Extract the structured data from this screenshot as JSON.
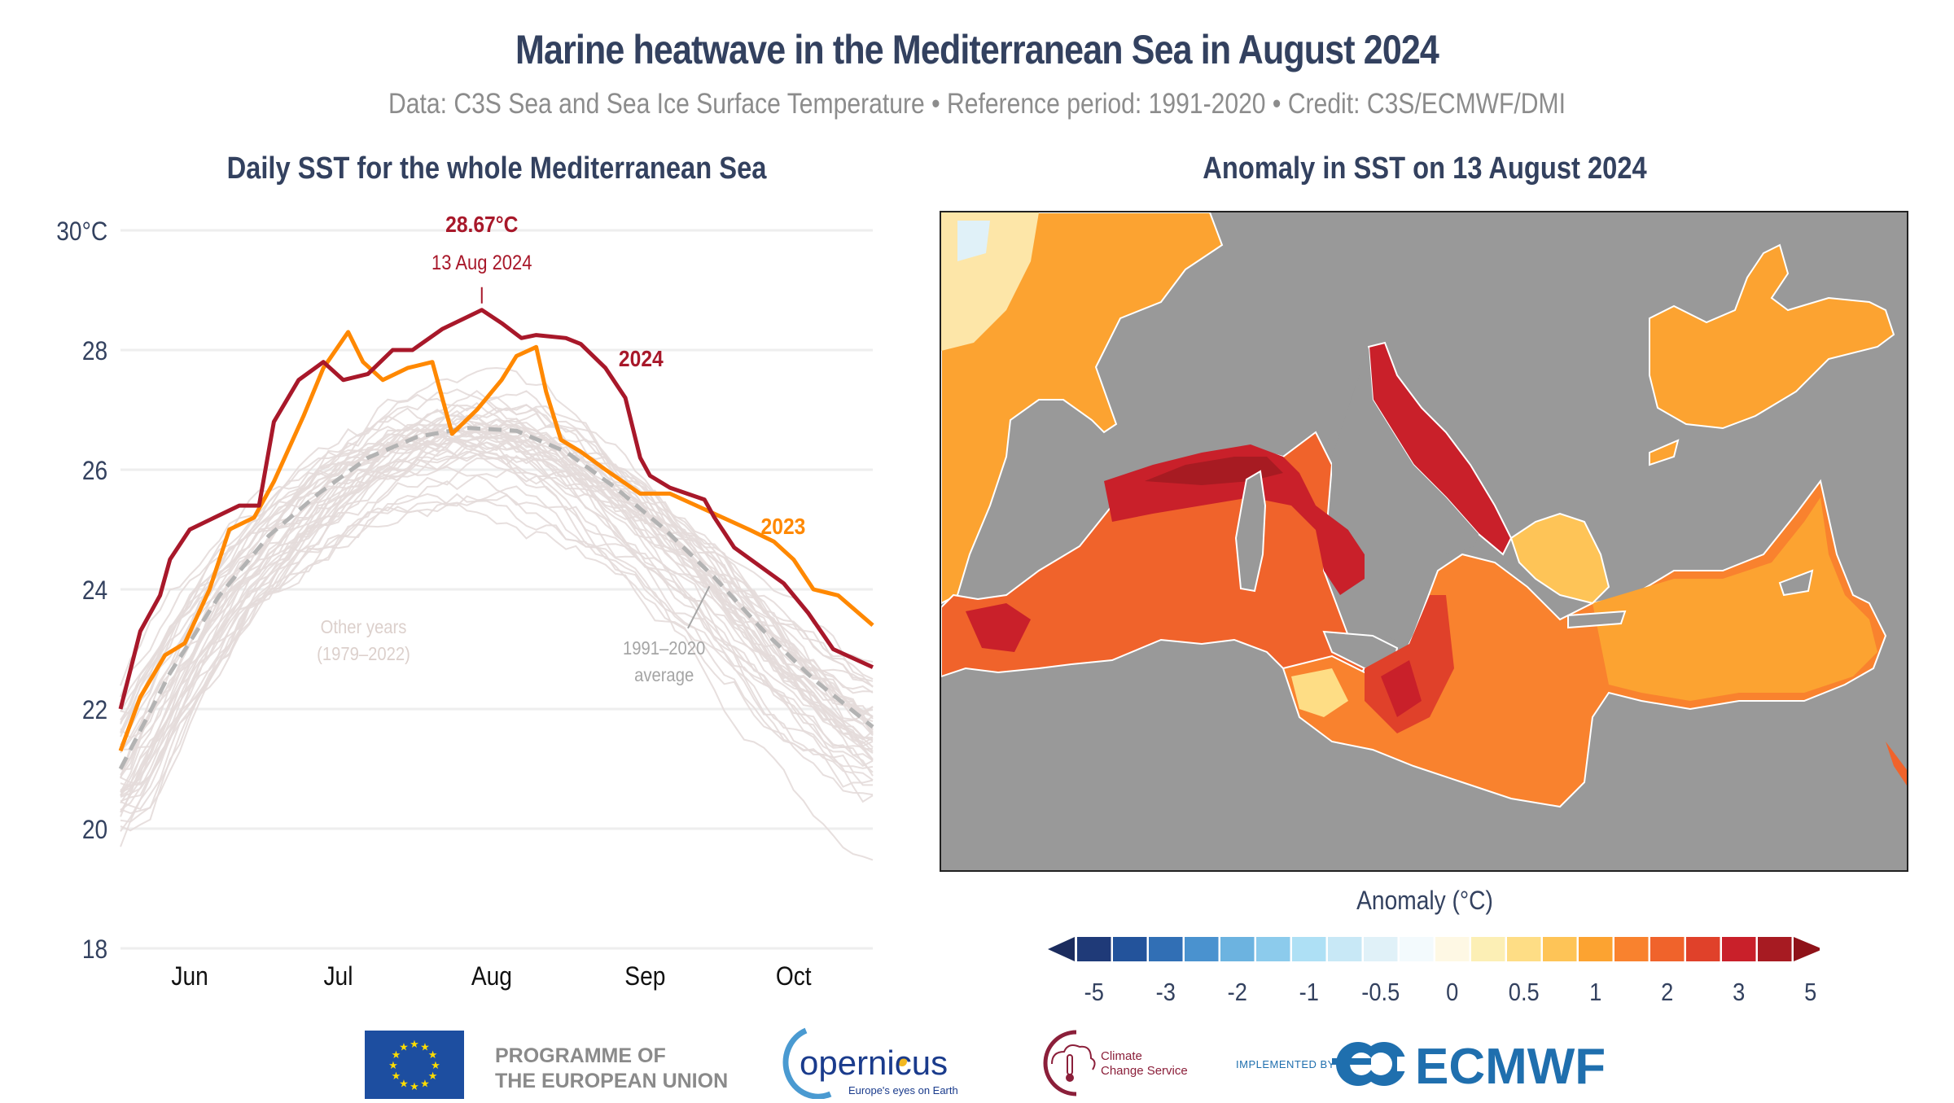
{
  "title": "Marine heatwave in the Mediterranean Sea in August 2024",
  "subtitle": "Data: C3S Sea and Sea Ice Surface Temperature • Reference period: 1991-2020 • Credit: C3S/ECMWF/DMI",
  "colors": {
    "y2024": "#a8182a",
    "y2023": "#ff8800",
    "other_years": "#e4dcda",
    "average": "#b3b3b3",
    "title_text": "#33415f",
    "land": "#999999"
  },
  "chart_data": [
    {
      "type": "line",
      "title": "Daily SST for the whole Mediterranean Sea",
      "xlabel": "",
      "ylabel": "",
      "x_unit": "day of season (0 = 1 Jun, 152 = 31 Oct)",
      "xlim": [
        0,
        152
      ],
      "ylim": [
        18,
        30
      ],
      "y_ticks": [
        {
          "value": 30,
          "label": "30°C"
        },
        {
          "value": 28,
          "label": "28"
        },
        {
          "value": 26,
          "label": "26"
        },
        {
          "value": 24,
          "label": "24"
        },
        {
          "value": 22,
          "label": "22"
        },
        {
          "value": 20,
          "label": "20"
        },
        {
          "value": 18,
          "label": "18"
        }
      ],
      "x_ticks": [
        {
          "value": 14,
          "label": "Jun"
        },
        {
          "value": 44,
          "label": "Jul"
        },
        {
          "value": 75,
          "label": "Aug"
        },
        {
          "value": 106,
          "label": "Sep"
        },
        {
          "value": 136,
          "label": "Oct"
        }
      ],
      "grid": true,
      "series": [
        {
          "name": "2024",
          "label": "2024",
          "color_key": "y2024",
          "points": [
            [
              0,
              22.0
            ],
            [
              4,
              23.3
            ],
            [
              8,
              23.9
            ],
            [
              10,
              24.5
            ],
            [
              14,
              25.0
            ],
            [
              19,
              25.2
            ],
            [
              24,
              25.4
            ],
            [
              28,
              25.4
            ],
            [
              31,
              26.8
            ],
            [
              36,
              27.5
            ],
            [
              41,
              27.8
            ],
            [
              45,
              27.5
            ],
            [
              50,
              27.6
            ],
            [
              55,
              28.0
            ],
            [
              59,
              28.0
            ],
            [
              65,
              28.35
            ],
            [
              73,
              28.67
            ],
            [
              77,
              28.45
            ],
            [
              81,
              28.2
            ],
            [
              84,
              28.25
            ],
            [
              90,
              28.2
            ],
            [
              93,
              28.1
            ],
            [
              98,
              27.7
            ],
            [
              102,
              27.2
            ],
            [
              105,
              26.2
            ],
            [
              107,
              25.9
            ],
            [
              111,
              25.7
            ],
            [
              118,
              25.5
            ],
            [
              120,
              25.2
            ],
            [
              124,
              24.7
            ],
            [
              129,
              24.4
            ],
            [
              134,
              24.1
            ],
            [
              139,
              23.6
            ],
            [
              144,
              23.0
            ],
            [
              152,
              22.7
            ]
          ]
        },
        {
          "name": "2023",
          "label": "2023",
          "color_key": "y2023",
          "points": [
            [
              0,
              21.3
            ],
            [
              4,
              22.2
            ],
            [
              9,
              22.9
            ],
            [
              13,
              23.1
            ],
            [
              18,
              24.0
            ],
            [
              22,
              25.0
            ],
            [
              27,
              25.2
            ],
            [
              31,
              25.8
            ],
            [
              37,
              26.9
            ],
            [
              41,
              27.7
            ],
            [
              46,
              28.3
            ],
            [
              49,
              27.8
            ],
            [
              53,
              27.5
            ],
            [
              58,
              27.7
            ],
            [
              63,
              27.8
            ],
            [
              67,
              26.6
            ],
            [
              72,
              27.0
            ],
            [
              77,
              27.5
            ],
            [
              80,
              27.9
            ],
            [
              84,
              28.05
            ],
            [
              86,
              27.3
            ],
            [
              89,
              26.5
            ],
            [
              93,
              26.3
            ],
            [
              98,
              26.0
            ],
            [
              105,
              25.6
            ],
            [
              111,
              25.6
            ],
            [
              119,
              25.3
            ],
            [
              127,
              25.0
            ],
            [
              132,
              24.8
            ],
            [
              136,
              24.5
            ],
            [
              140,
              24.0
            ],
            [
              145,
              23.9
            ],
            [
              152,
              23.4
            ]
          ]
        },
        {
          "name": "1991–2020 average",
          "label": "1991–2020\naverage",
          "color_key": "average",
          "dashed": true,
          "points": [
            [
              0,
              21.0
            ],
            [
              10,
              22.6
            ],
            [
              20,
              23.9
            ],
            [
              30,
              24.9
            ],
            [
              40,
              25.6
            ],
            [
              50,
              26.2
            ],
            [
              60,
              26.55
            ],
            [
              70,
              26.7
            ],
            [
              80,
              26.65
            ],
            [
              90,
              26.3
            ],
            [
              100,
              25.7
            ],
            [
              110,
              25.0
            ],
            [
              120,
              24.2
            ],
            [
              130,
              23.3
            ],
            [
              140,
              22.5
            ],
            [
              152,
              21.7
            ]
          ]
        },
        {
          "name": "Other years (1979–2022)",
          "label": "Other years\n(1979–2022)",
          "color_key": "other_years",
          "envelope_note": "44 thin individual-year lines scattered around the average, roughly ±1.5°C"
        }
      ],
      "annotations": [
        {
          "text": "28.67°C",
          "bold": true,
          "x": 73,
          "y": 28.67
        },
        {
          "text": "13 Aug 2024",
          "x": 73,
          "y": 28.67
        },
        {
          "text": "2024",
          "x": 103,
          "y": 28.0
        },
        {
          "text": "2023",
          "x": 131,
          "y": 25.2
        },
        {
          "text": "Other years",
          "x": 52,
          "y": 23.4
        },
        {
          "text": "(1979–2022)",
          "x": 52,
          "y": 22.95
        },
        {
          "text": "1991–2020",
          "x": 112,
          "y": 23.05
        },
        {
          "text": "average",
          "x": 112,
          "y": 22.6
        }
      ]
    },
    {
      "type": "heatmap",
      "title": "Anomaly in SST on 13 August 2024",
      "colorbar_title": "Anomaly (°C)",
      "colorbar_ticks": [
        "-5",
        "-3",
        "-2",
        "-1",
        "-0.5",
        "0",
        "0.5",
        "1",
        "2",
        "3",
        "5"
      ],
      "colorbar_bins": [
        "#1f3a78",
        "#23539b",
        "#316fb5",
        "#4a92cf",
        "#6cb3e0",
        "#8ccbec",
        "#aee0f5",
        "#c8e8f6",
        "#e0f1f8",
        "#f3fafd",
        "#fef8e4",
        "#fcefb5",
        "#fedd85",
        "#fec457",
        "#fca331",
        "#f9822e",
        "#f0632b",
        "#e0412a",
        "#c9202a",
        "#a71b22"
      ],
      "colorbar_under": "#1b2c5e",
      "colorbar_over": "#8f1219",
      "regions": [
        {
          "name": "Western Mediterranean (Ligurian/Tyrrhenian)",
          "anomaly_approx": "3 to 5"
        },
        {
          "name": "Adriatic Sea",
          "anomaly_approx": "3 to 5"
        },
        {
          "name": "Central & Ionian Sea",
          "anomaly_approx": "2 to 3"
        },
        {
          "name": "Eastern Mediterranean",
          "anomaly_approx": "1 to 2"
        },
        {
          "name": "Black Sea",
          "anomaly_approx": "1 to 2"
        },
        {
          "name": "Atlantic (Bay of Biscay)",
          "anomaly_approx": "0 to 2"
        }
      ]
    }
  ],
  "logos": {
    "eu_text_line1": "PROGRAMME OF",
    "eu_text_line2": "THE EUROPEAN UNION",
    "copernicus_name": "opernicus",
    "copernicus_tagline": "Europe's eyes on Earth",
    "c3s_line1": "Climate",
    "c3s_line2": "Change Service",
    "implemented_by": "IMPLEMENTED BY",
    "ecmwf": "ECMWF"
  }
}
